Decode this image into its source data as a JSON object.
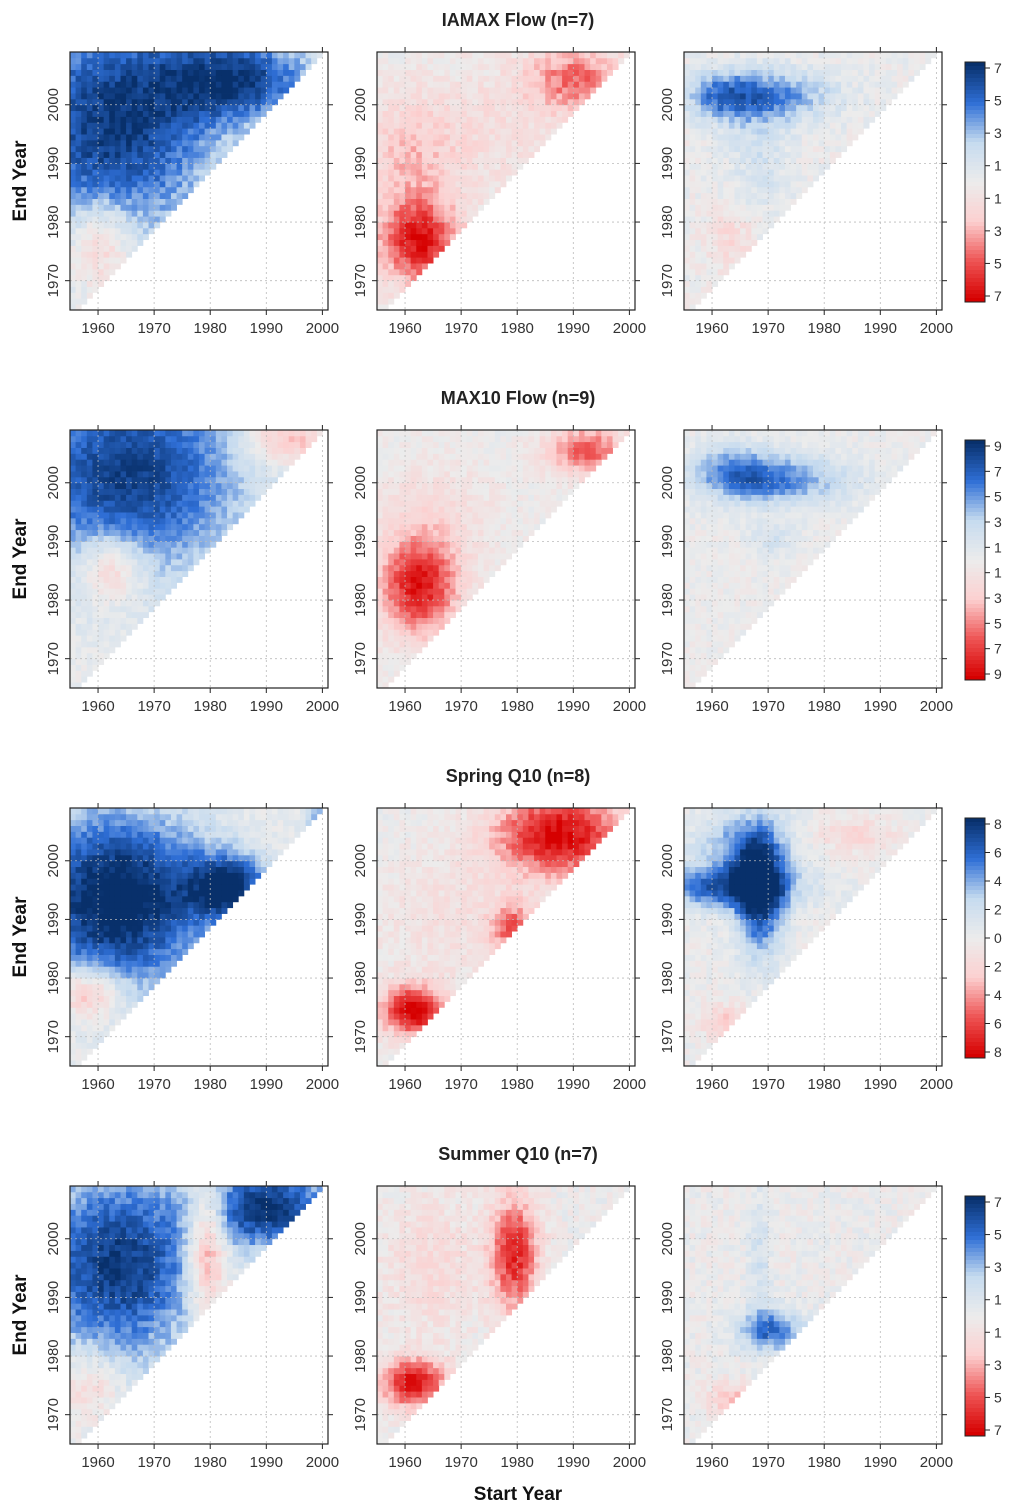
{
  "figure": {
    "xlabel": "Start Year",
    "ylabel": "End Year",
    "grid": true,
    "legend": "right"
  },
  "colors": {
    "strong_blue": "#08306b",
    "mid_blue": "#2f6fd6",
    "light_blue": "#c6dbef",
    "neutral": "#ececec",
    "light_red": "#fcd0d0",
    "mid_red": "#ee5555",
    "strong_red": "#d60000"
  },
  "chart_data": [
    {
      "type": "heatmap",
      "title": "IAMAX Flow (n=7)",
      "n": 7,
      "colorbar_ticks": [
        "7",
        "5",
        "3",
        "1",
        "1",
        "3",
        "5",
        "7"
      ],
      "xlim": [
        1955,
        2001
      ],
      "ylim": [
        1965,
        2009
      ],
      "x_ticks": [
        "1960",
        "1970",
        "1980",
        "1990",
        "2000"
      ],
      "y_ticks": [
        "1970",
        "1980",
        "1990",
        "2000"
      ],
      "panels": [
        {
          "sign": "positive",
          "blobs": [
            {
              "x": 1962,
              "y": 1996,
              "sx": 14,
              "sy": 14,
              "v": 6.6
            },
            {
              "x": 1985,
              "y": 2004,
              "sx": 10,
              "sy": 5,
              "v": 5.5
            },
            {
              "x": 1960,
              "y": 1976,
              "sx": 4,
              "sy": 5,
              "v": -3.5
            }
          ]
        },
        {
          "sign": "negative",
          "blobs": [
            {
              "x": 1962,
              "y": 1976,
              "sx": 5,
              "sy": 5,
              "v": 6.2
            },
            {
              "x": 1960,
              "y": 1990,
              "sx": 6,
              "sy": 8,
              "v": 2.2
            },
            {
              "x": 1990,
              "y": 2004,
              "sx": 6,
              "sy": 4,
              "v": 4.2
            },
            {
              "x": 1975,
              "y": 1995,
              "sx": 10,
              "sy": 8,
              "v": 1.2
            }
          ]
        },
        {
          "sign": "positive",
          "blobs": [
            {
              "x": 1970,
              "y": 2001,
              "sx": 8,
              "sy": 3,
              "v": 4.0
            },
            {
              "x": 1961,
              "y": 2001,
              "sx": 4,
              "sy": 3,
              "v": 3.2
            },
            {
              "x": 1968,
              "y": 1992,
              "sx": 4,
              "sy": 8,
              "v": 1.6
            },
            {
              "x": 1963,
              "y": 1977,
              "sx": 3,
              "sy": 4,
              "v": -1.6
            }
          ]
        }
      ]
    },
    {
      "type": "heatmap",
      "title": "MAX10 Flow (n=9)",
      "n": 9,
      "colorbar_ticks": [
        "9",
        "7",
        "5",
        "3",
        "1",
        "1",
        "3",
        "5",
        "7",
        "9"
      ],
      "xlim": [
        1955,
        2001
      ],
      "ylim": [
        1965,
        2009
      ],
      "x_ticks": [
        "1960",
        "1970",
        "1980",
        "1990",
        "2000"
      ],
      "y_ticks": [
        "1970",
        "1980",
        "1990",
        "2000"
      ],
      "panels": [
        {
          "sign": "positive",
          "blobs": [
            {
              "x": 1965,
              "y": 2001,
              "sx": 15,
              "sy": 13,
              "v": 8.2
            },
            {
              "x": 1962,
              "y": 1985,
              "sx": 4,
              "sy": 4,
              "v": -5.0
            },
            {
              "x": 1993,
              "y": 2007,
              "sx": 5,
              "sy": 3,
              "v": -4.5
            }
          ]
        },
        {
          "sign": "negative",
          "blobs": [
            {
              "x": 1962,
              "y": 1982,
              "sx": 5,
              "sy": 6,
              "v": 8.3
            },
            {
              "x": 1992,
              "y": 2005,
              "sx": 5,
              "sy": 3,
              "v": 6.0
            },
            {
              "x": 1965,
              "y": 1995,
              "sx": 8,
              "sy": 6,
              "v": 1.5
            }
          ]
        },
        {
          "sign": "positive",
          "blobs": [
            {
              "x": 1971,
              "y": 2000,
              "sx": 9,
              "sy": 3,
              "v": 5.5
            },
            {
              "x": 1963,
              "y": 2002,
              "sx": 5,
              "sy": 3,
              "v": 3.5
            },
            {
              "x": 1970,
              "y": 1990,
              "sx": 3,
              "sy": 2,
              "v": 2.0
            }
          ]
        }
      ]
    },
    {
      "type": "heatmap",
      "title": "Spring Q10 (n=8)",
      "n": 8,
      "colorbar_ticks": [
        "8",
        "6",
        "4",
        "2",
        "0",
        "2",
        "4",
        "6",
        "8"
      ],
      "xlim": [
        1955,
        2001
      ],
      "ylim": [
        1965,
        2009
      ],
      "x_ticks": [
        "1960",
        "1970",
        "1980",
        "1990",
        "2000"
      ],
      "y_ticks": [
        "1970",
        "1980",
        "1990",
        "2000"
      ],
      "panels": [
        {
          "sign": "positive",
          "blobs": [
            {
              "x": 1963,
              "y": 1993,
              "sx": 12,
              "sy": 11,
              "v": 9.0
            },
            {
              "x": 1983,
              "y": 1995,
              "sx": 5,
              "sy": 4,
              "v": 7.0
            },
            {
              "x": 1958,
              "y": 1977,
              "sx": 4,
              "sy": 3,
              "v": -5.0
            },
            {
              "x": 1999,
              "y": 2007,
              "sx": 2,
              "sy": 2,
              "v": 4.0
            }
          ]
        },
        {
          "sign": "negative",
          "blobs": [
            {
              "x": 1961,
              "y": 1974,
              "sx": 4,
              "sy": 3,
              "v": 8.5
            },
            {
              "x": 1987,
              "y": 2004,
              "sx": 8,
              "sy": 5,
              "v": 8.0
            },
            {
              "x": 1979,
              "y": 1988,
              "sx": 3,
              "sy": 3,
              "v": 5.0
            },
            {
              "x": 1968,
              "y": 1990,
              "sx": 10,
              "sy": 8,
              "v": 1.2
            }
          ]
        },
        {
          "sign": "positive",
          "blobs": [
            {
              "x": 1968,
              "y": 1994,
              "sx": 3,
              "sy": 7,
              "v": 8.0
            },
            {
              "x": 1962,
              "y": 1995,
              "sx": 9,
              "sy": 2.5,
              "v": 6.0
            },
            {
              "x": 1965,
              "y": 2002,
              "sx": 6,
              "sy": 4,
              "v": 4.0
            },
            {
              "x": 1962,
              "y": 1972,
              "sx": 3,
              "sy": 2,
              "v": -3.0
            },
            {
              "x": 1985,
              "y": 2004,
              "sx": 5,
              "sy": 2,
              "v": -2.0
            }
          ]
        }
      ]
    },
    {
      "type": "heatmap",
      "title": "Summer Q10 (n=7)",
      "n": 7,
      "colorbar_ticks": [
        "7",
        "5",
        "3",
        "1",
        "1",
        "3",
        "5",
        "7"
      ],
      "xlim": [
        1955,
        2001
      ],
      "ylim": [
        1965,
        2009
      ],
      "x_ticks": [
        "1960",
        "1970",
        "1980",
        "1990",
        "2000"
      ],
      "y_ticks": [
        "1970",
        "1980",
        "1990",
        "2000"
      ],
      "panels": [
        {
          "sign": "positive",
          "blobs": [
            {
              "x": 1963,
              "y": 1995,
              "sx": 11,
              "sy": 12,
              "v": 6.6
            },
            {
              "x": 1990,
              "y": 2005,
              "sx": 8,
              "sy": 5,
              "v": 6.8
            },
            {
              "x": 1979,
              "y": 1998,
              "sx": 2.5,
              "sy": 8,
              "v": -5.5
            },
            {
              "x": 1958,
              "y": 1975,
              "sx": 4,
              "sy": 4,
              "v": -2.5
            }
          ]
        },
        {
          "sign": "negative",
          "blobs": [
            {
              "x": 1961,
              "y": 1975,
              "sx": 4,
              "sy": 3,
              "v": 6.8
            },
            {
              "x": 1979,
              "y": 1997,
              "sx": 3,
              "sy": 7,
              "v": 6.0
            },
            {
              "x": 1964,
              "y": 1995,
              "sx": 6,
              "sy": 8,
              "v": 1.6
            }
          ]
        },
        {
          "sign": "positive",
          "blobs": [
            {
              "x": 1970,
              "y": 1984,
              "sx": 4,
              "sy": 2.5,
              "v": 5.0
            },
            {
              "x": 1968,
              "y": 1997,
              "sx": 1.5,
              "sy": 8,
              "v": 1.6
            },
            {
              "x": 1963,
              "y": 1972,
              "sx": 3,
              "sy": 2,
              "v": -2.5
            }
          ]
        }
      ]
    }
  ]
}
